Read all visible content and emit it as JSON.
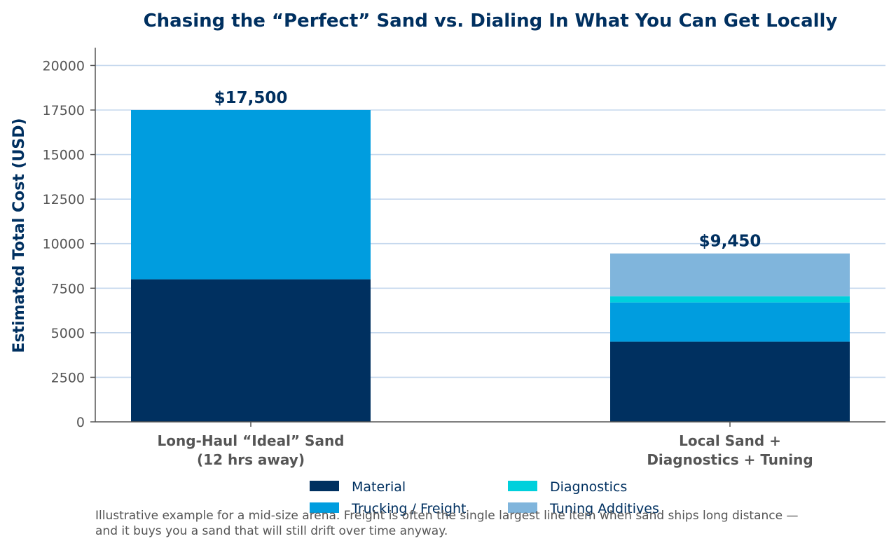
{
  "chart_data": {
    "type": "bar",
    "stacked": true,
    "title": "Chasing the “Perfect” Sand vs. Dialing In What You Can Get Locally",
    "ylabel": "Estimated Total Cost (USD)",
    "xlabel": "",
    "ylim": [
      0,
      21000
    ],
    "yticks": [
      "0",
      "2500",
      "5000",
      "7500",
      "10000",
      "12500",
      "15000",
      "17500",
      "20000"
    ],
    "grid": true,
    "categories": [
      [
        "Long-Haul “Ideal” Sand",
        "(12 hrs away)"
      ],
      [
        "Local Sand +",
        "Diagnostics + Tuning"
      ]
    ],
    "series": [
      {
        "name": "Material",
        "values": [
          8000,
          4500
        ],
        "color": "#003060"
      },
      {
        "name": "Trucking / Freight",
        "values": [
          9500,
          2200
        ],
        "color": "#009ddf"
      },
      {
        "name": "Diagnostics",
        "values": [
          0,
          350
        ],
        "color": "#00d0dc"
      },
      {
        "name": "Tuning Additives",
        "values": [
          0,
          2400
        ],
        "color": "#80b5dc"
      }
    ],
    "totals": [
      "$17,500",
      "$9,450"
    ],
    "total_values": [
      17500,
      9450
    ],
    "legend_position": "bottom-center",
    "footnote": [
      "Illustrative example for a mid-size arena. Freight is often the single largest line item when sand ships long distance —",
      "and it buys you a sand that will still drift over time anyway."
    ]
  },
  "colors": {
    "title": "#003060",
    "grid": "#c6d8ee",
    "axis": "#555555"
  }
}
